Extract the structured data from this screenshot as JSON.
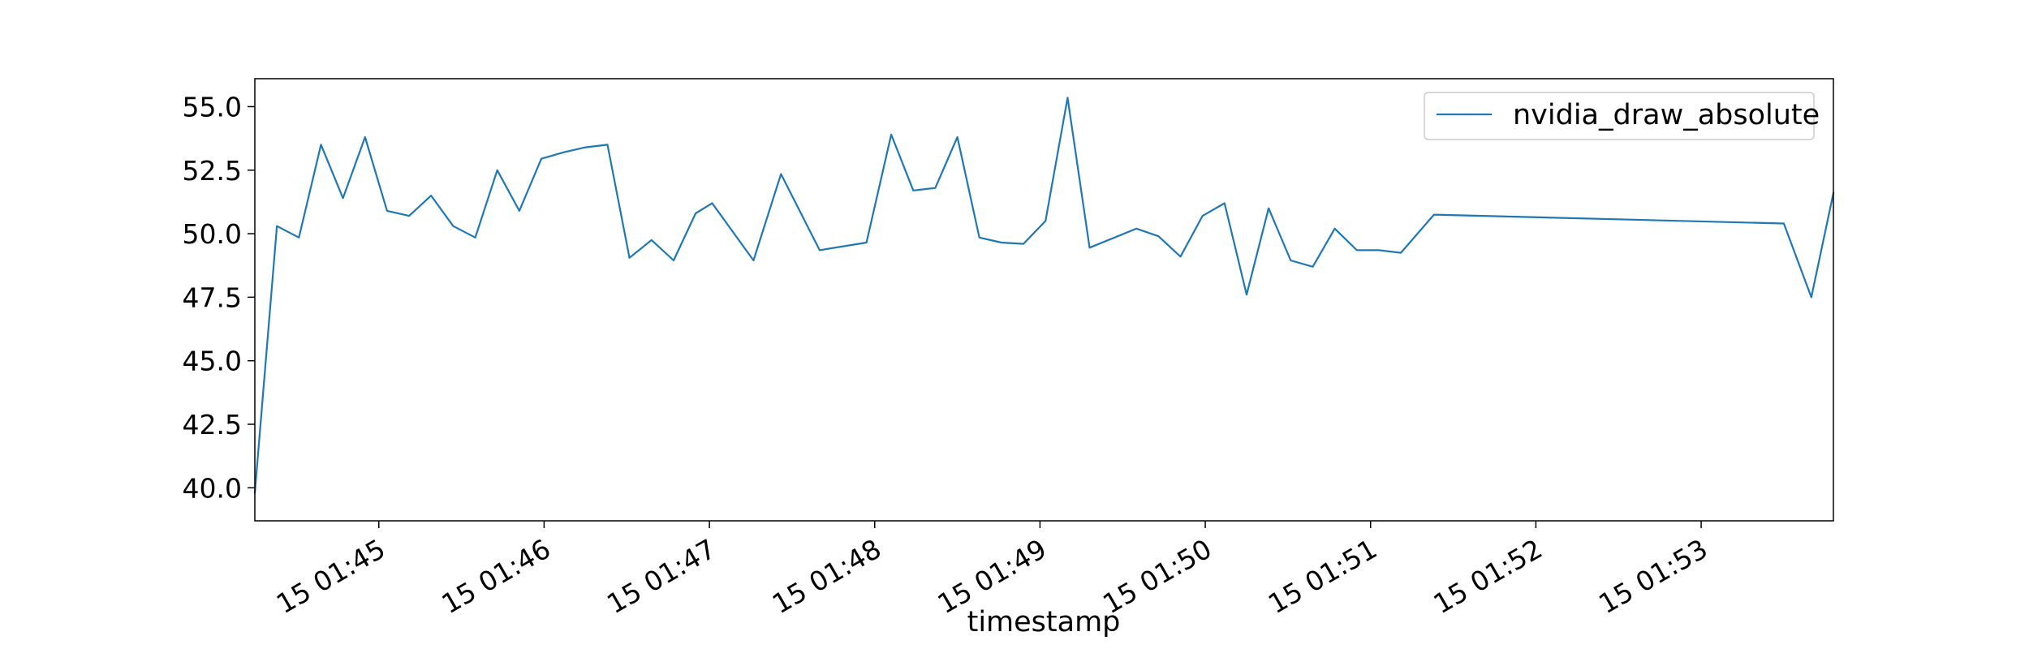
{
  "chart_data": {
    "type": "line",
    "title": "",
    "xlabel": "timestamp",
    "ylabel": "",
    "x_tick_labels": [
      "15 01:45",
      "15 01:46",
      "15 01:47",
      "15 01:48",
      "15 01:49",
      "15 01:50",
      "15 01:51",
      "15 01:52",
      "15 01:53"
    ],
    "y_tick_labels": [
      "40.0",
      "42.5",
      "45.0",
      "47.5",
      "50.0",
      "52.5",
      "55.0"
    ],
    "y_ticks": [
      40.0,
      42.5,
      45.0,
      47.5,
      50.0,
      52.5,
      55.0
    ],
    "ylim": [
      38.7,
      56.1
    ],
    "xlim": [
      "01:44:15",
      "01:53:48"
    ],
    "x_tick_times": [
      "01:45:00",
      "01:46:00",
      "01:47:00",
      "01:48:00",
      "01:49:00",
      "01:50:00",
      "01:51:00",
      "01:52:00",
      "01:53:00"
    ],
    "grid": false,
    "legend_position": "top-right",
    "colors": {
      "series": "#1f77b4",
      "axis": "#000000"
    },
    "series": [
      {
        "name": "nvidia_draw_absolute",
        "x": [
          "01:44:15",
          "01:44:23",
          "01:44:31",
          "01:44:39",
          "01:44:47",
          "01:44:55",
          "01:45:03",
          "01:45:11",
          "01:45:19",
          "01:45:27",
          "01:45:35",
          "01:45:43",
          "01:45:51",
          "01:45:59",
          "01:46:07",
          "01:46:15",
          "01:46:23",
          "01:46:31",
          "01:46:39",
          "01:46:47",
          "01:46:55",
          "01:47:01",
          "01:47:16",
          "01:47:26",
          "01:47:40",
          "01:47:57",
          "01:48:06",
          "01:48:14",
          "01:48:22",
          "01:48:30",
          "01:48:38",
          "01:48:46",
          "01:48:54",
          "01:49:02",
          "01:49:10",
          "01:49:18",
          "01:49:35",
          "01:49:43",
          "01:49:51",
          "01:49:59",
          "01:50:07",
          "01:50:15",
          "01:50:23",
          "01:50:31",
          "01:50:39",
          "01:50:47",
          "01:50:55",
          "01:51:03",
          "01:51:11",
          "01:51:23",
          "01:53:30",
          "01:53:40",
          "01:53:48"
        ],
        "y": [
          39.8,
          50.3,
          49.85,
          53.5,
          51.4,
          53.8,
          50.9,
          50.7,
          51.5,
          50.3,
          49.85,
          52.5,
          50.9,
          52.95,
          53.2,
          53.4,
          53.5,
          49.05,
          49.75,
          48.95,
          50.8,
          51.2,
          48.95,
          52.35,
          49.35,
          49.65,
          53.9,
          51.7,
          51.8,
          53.8,
          49.85,
          49.65,
          49.6,
          50.5,
          55.35,
          49.45,
          50.2,
          49.9,
          49.1,
          50.7,
          51.2,
          47.6,
          51.0,
          48.95,
          48.7,
          50.2,
          49.35,
          49.35,
          49.25,
          50.75,
          50.4,
          47.5,
          51.6
        ]
      }
    ]
  }
}
